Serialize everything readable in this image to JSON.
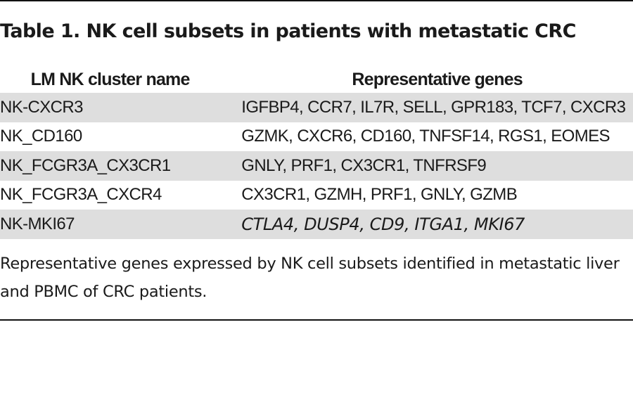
{
  "table": {
    "title": "Table 1. NK cell subsets in patients with metastatic CRC",
    "headers": {
      "cluster": "LM NK cluster name",
      "genes": "Representative genes"
    },
    "rows": [
      {
        "cluster": "NK-CXCR3",
        "genes": "IGFBP4, CCR7, IL7R, SELL, GPR183, TCF7, CXCR3"
      },
      {
        "cluster": "NK_CD160",
        "genes": "GZMK, CXCR6, CD160, TNFSF14, RGS1, EOMES"
      },
      {
        "cluster": "NK_FCGR3A_CX3CR1",
        "genes": "GNLY, PRF1, CX3CR1, TNFRSF9"
      },
      {
        "cluster": "NK_FCGR3A_CXCR4",
        "genes": "CX3CR1, GZMH, PRF1, GNLY, GZMB"
      },
      {
        "cluster": "NK-MKI67",
        "genes": "CTLA4, DUSP4, CD9, ITGA1, MKI67"
      }
    ],
    "footnote": "Representative genes expressed by NK cell subsets identified in metastatic liver and PBMC of CRC patients."
  }
}
